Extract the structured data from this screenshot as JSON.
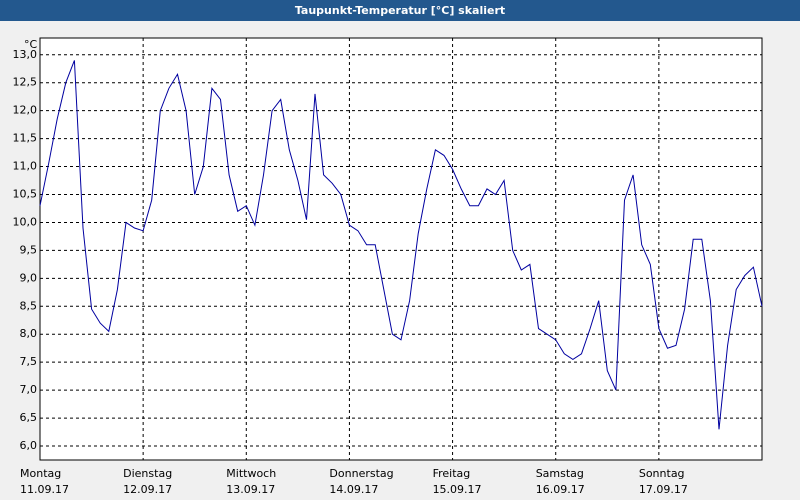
{
  "chart_data": {
    "type": "line",
    "title": "Taupunkt-Temperatur [°C] skaliert",
    "unit": "°C",
    "days": [
      {
        "name": "Montag",
        "date": "11.09.17"
      },
      {
        "name": "Dienstag",
        "date": "12.09.17"
      },
      {
        "name": "Mittwoch",
        "date": "13.09.17"
      },
      {
        "name": "Donnerstag",
        "date": "14.09.17"
      },
      {
        "name": "Freitag",
        "date": "15.09.17"
      },
      {
        "name": "Samstag",
        "date": "16.09.17"
      },
      {
        "name": "Sonntag",
        "date": "17.09.17"
      }
    ],
    "series": [
      {
        "color": "#0000a0",
        "values": [
          10.3,
          11.05,
          11.85,
          12.5,
          12.9,
          9.9,
          8.45,
          8.2,
          8.05,
          8.8,
          10.0,
          9.9,
          9.85,
          10.4,
          12.0,
          12.4,
          12.65,
          12.0,
          10.5,
          11.0,
          12.4,
          12.2,
          10.85,
          10.2,
          10.3,
          9.95,
          10.85,
          12.0,
          12.2,
          11.3,
          10.75,
          10.05,
          12.3,
          10.85,
          10.7,
          10.5,
          9.95,
          9.85,
          9.6,
          9.6,
          8.8,
          8.0,
          7.9,
          8.6,
          9.8,
          10.6,
          11.3,
          11.2,
          10.95,
          10.6,
          10.3,
          10.3,
          10.6,
          10.5,
          10.75,
          9.5,
          9.15,
          9.25,
          8.1,
          8.0,
          7.9,
          7.65,
          7.55,
          7.65,
          8.1,
          8.6,
          7.35,
          7.0,
          10.4,
          10.85,
          9.6,
          9.25,
          8.1,
          7.75,
          7.8,
          8.45,
          9.7,
          9.7,
          8.6,
          6.3,
          7.8,
          8.8,
          9.05,
          9.2,
          8.5
        ]
      }
    ],
    "ylim": [
      5.75,
      13.3
    ],
    "yticks": [
      {
        "value": 6,
        "label": "6,0"
      },
      {
        "value": 6.5,
        "label": "6,5"
      },
      {
        "value": 7,
        "label": "7,0"
      },
      {
        "value": 7.5,
        "label": "7,5"
      },
      {
        "value": 8,
        "label": "8,0"
      },
      {
        "value": 8.5,
        "label": "8,5"
      },
      {
        "value": 9,
        "label": "9,0"
      },
      {
        "value": 9.5,
        "label": "9,5"
      },
      {
        "value": 10,
        "label": "10,0"
      },
      {
        "value": 10.5,
        "label": "10,5"
      },
      {
        "value": 11,
        "label": "11,0"
      },
      {
        "value": 11.5,
        "label": "11,5"
      },
      {
        "value": 12,
        "label": "12,0"
      },
      {
        "value": 12.5,
        "label": "12,5"
      },
      {
        "value": 13,
        "label": "13,0"
      }
    ],
    "grid": true
  }
}
